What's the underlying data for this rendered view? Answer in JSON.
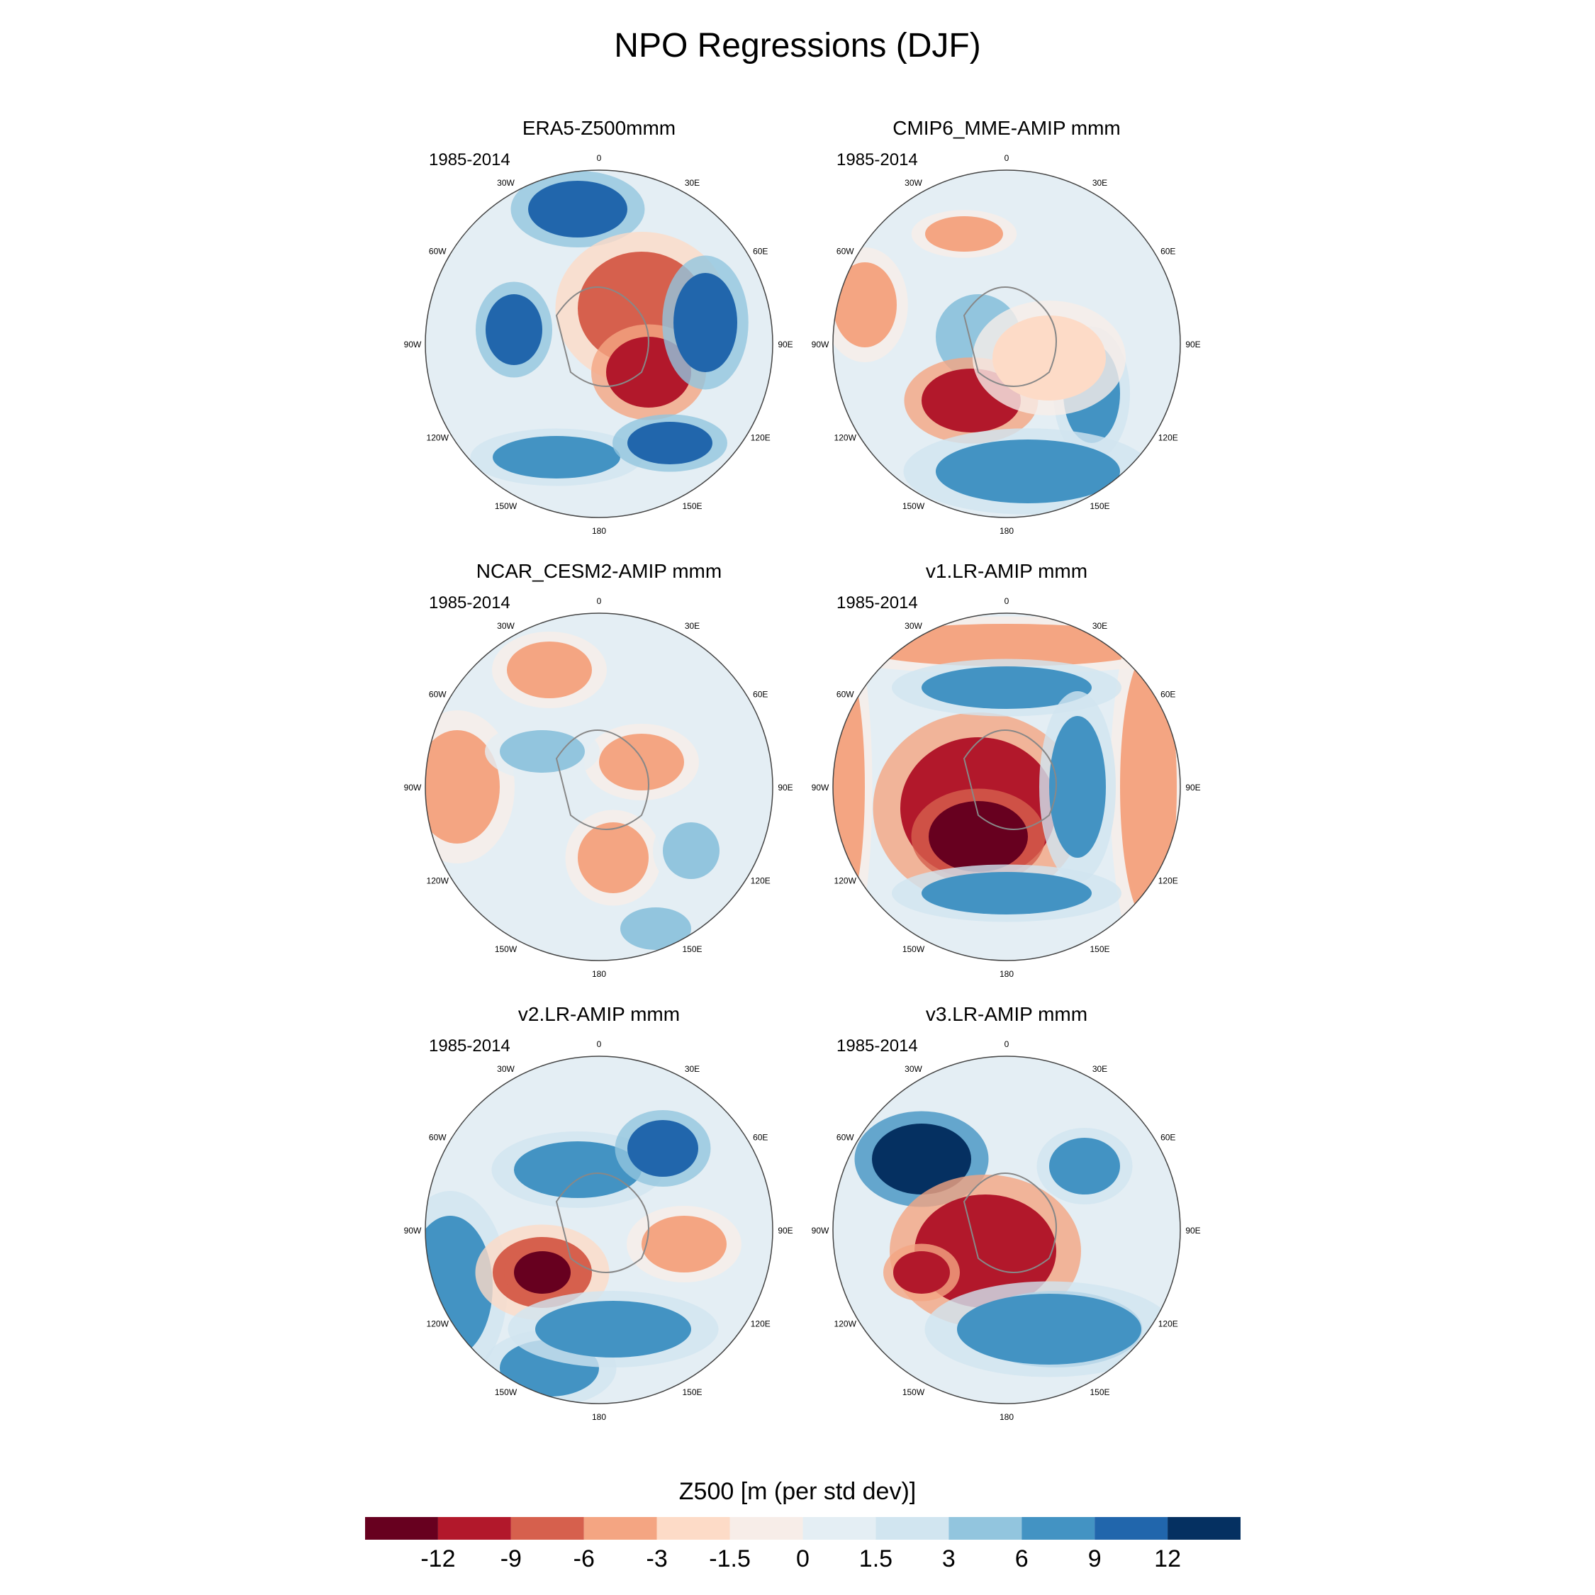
{
  "chart_data": {
    "type": "heatmap",
    "title": "NPO Regressions (DJF)",
    "colorbar": {
      "label": "Z500 [m (per std dev)]",
      "levels": [
        "-12",
        "-9",
        "-6",
        "-3",
        "-1.5",
        "0",
        "1.5",
        "3",
        "6",
        "9",
        "12"
      ],
      "colors": [
        "#67001f",
        "#b2182b",
        "#d6604d",
        "#f4a582",
        "#fddbc7",
        "#f7ede8",
        "#e4eef4",
        "#d1e5f0",
        "#92c5de",
        "#4393c3",
        "#2166ac",
        "#053061"
      ]
    },
    "ticks": [
      "0",
      "30E",
      "60E",
      "90E",
      "120E",
      "150E",
      "180",
      "150W",
      "120W",
      "90W",
      "60W",
      "30W"
    ],
    "panels": [
      {
        "title": "ERA5-Z500mmm",
        "period": "1985-2014"
      },
      {
        "title": "CMIP6_MME-AMIP  mmm",
        "period": "1985-2014"
      },
      {
        "title": "NCAR_CESM2-AMIP  mmm",
        "period": "1985-2014"
      },
      {
        "title": "v1.LR-AMIP  mmm",
        "period": "1985-2014"
      },
      {
        "title": "v2.LR-AMIP  mmm",
        "period": "1985-2014"
      },
      {
        "title": "v3.LR-AMIP  mmm",
        "period": "1985-2014"
      }
    ]
  }
}
